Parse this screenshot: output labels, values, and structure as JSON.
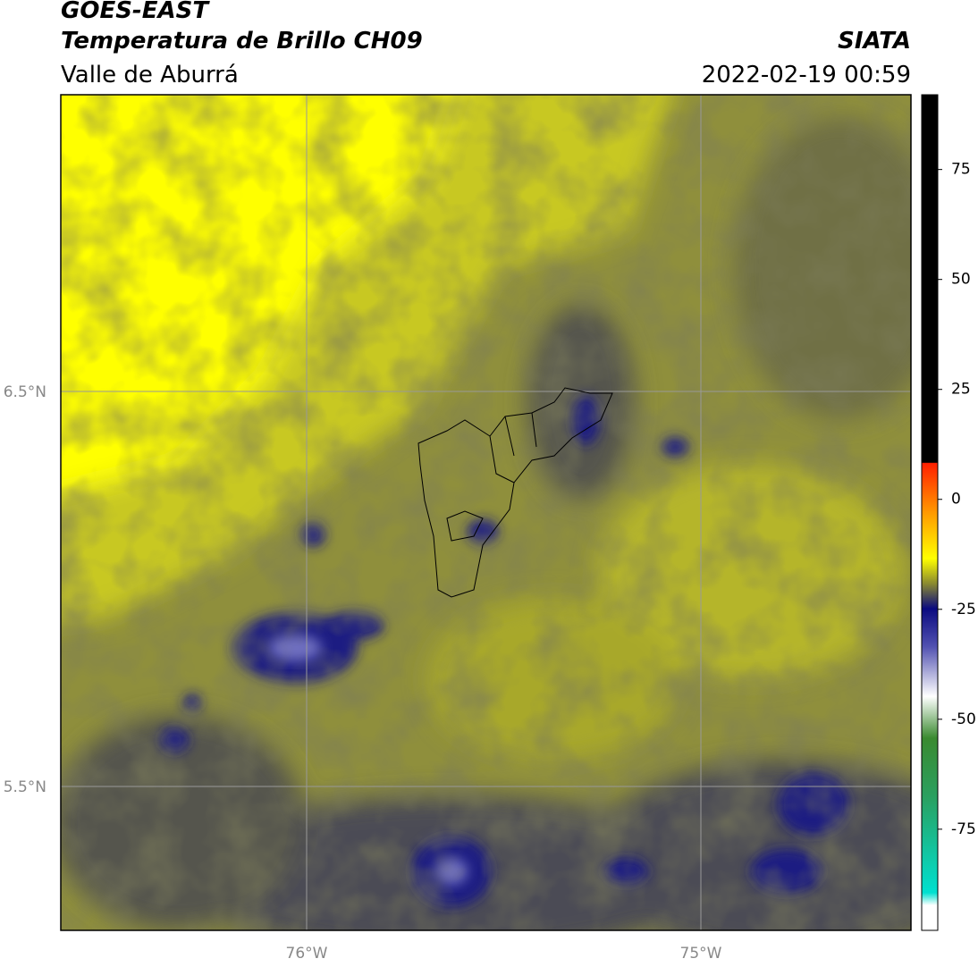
{
  "header": {
    "title": "GOES-EAST",
    "subtitle": "Temperatura de Brillo CH09",
    "region": "Valle de Aburrá",
    "source": "SIATA",
    "datetime": "2022-02-19 00:59"
  },
  "map": {
    "lat_labels": [
      "6.5°N",
      "5.5°N"
    ],
    "lon_labels": [
      "76°W",
      "75°W"
    ]
  },
  "colorbar": {
    "range": [
      -98,
      92
    ],
    "ticks": [
      75,
      50,
      25,
      0,
      -25,
      -50,
      -75
    ]
  }
}
